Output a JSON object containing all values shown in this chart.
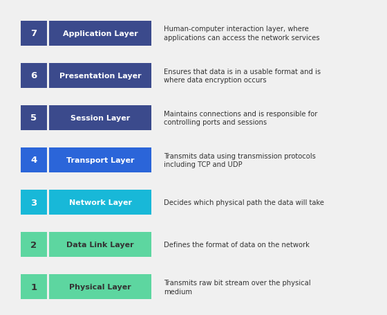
{
  "layers": [
    {
      "number": "7",
      "name": "Application Layer",
      "description": "Human-computer interaction layer, where\napplications can access the network services",
      "num_color": "#3b4a8c",
      "bar_color": "#3b4a8c",
      "text_color": "#ffffff"
    },
    {
      "number": "6",
      "name": "Presentation Layer",
      "description": "Ensures that data is in a usable format and is\nwhere data encryption occurs",
      "num_color": "#3b4a8c",
      "bar_color": "#3b4a8c",
      "text_color": "#ffffff"
    },
    {
      "number": "5",
      "name": "Session Layer",
      "description": "Maintains connections and is responsible for\ncontrolling ports and sessions",
      "num_color": "#3b4a8c",
      "bar_color": "#3b4a8c",
      "text_color": "#ffffff"
    },
    {
      "number": "4",
      "name": "Transport Layer",
      "description": "Transmits data using transmission protocols\nincluding TCP and UDP",
      "num_color": "#2b65d9",
      "bar_color": "#2b65d9",
      "text_color": "#ffffff"
    },
    {
      "number": "3",
      "name": "Network Layer",
      "description": "Decides which physical path the data will take",
      "num_color": "#18b8d8",
      "bar_color": "#18b8d8",
      "text_color": "#ffffff"
    },
    {
      "number": "2",
      "name": "Data Link Layer",
      "description": "Defines the format of data on the network",
      "num_color": "#5dd6a0",
      "bar_color": "#5dd6a0",
      "text_color": "#333333"
    },
    {
      "number": "1",
      "name": "Physical Layer",
      "description": "Transmits raw bit stream over the physical\nmedium",
      "num_color": "#5dd6a0",
      "bar_color": "#5dd6a0",
      "text_color": "#333333"
    }
  ],
  "background_color": "#f0f0f0",
  "desc_text_color": "#333333",
  "fig_width": 5.6,
  "fig_height": 4.56,
  "dpi": 100
}
